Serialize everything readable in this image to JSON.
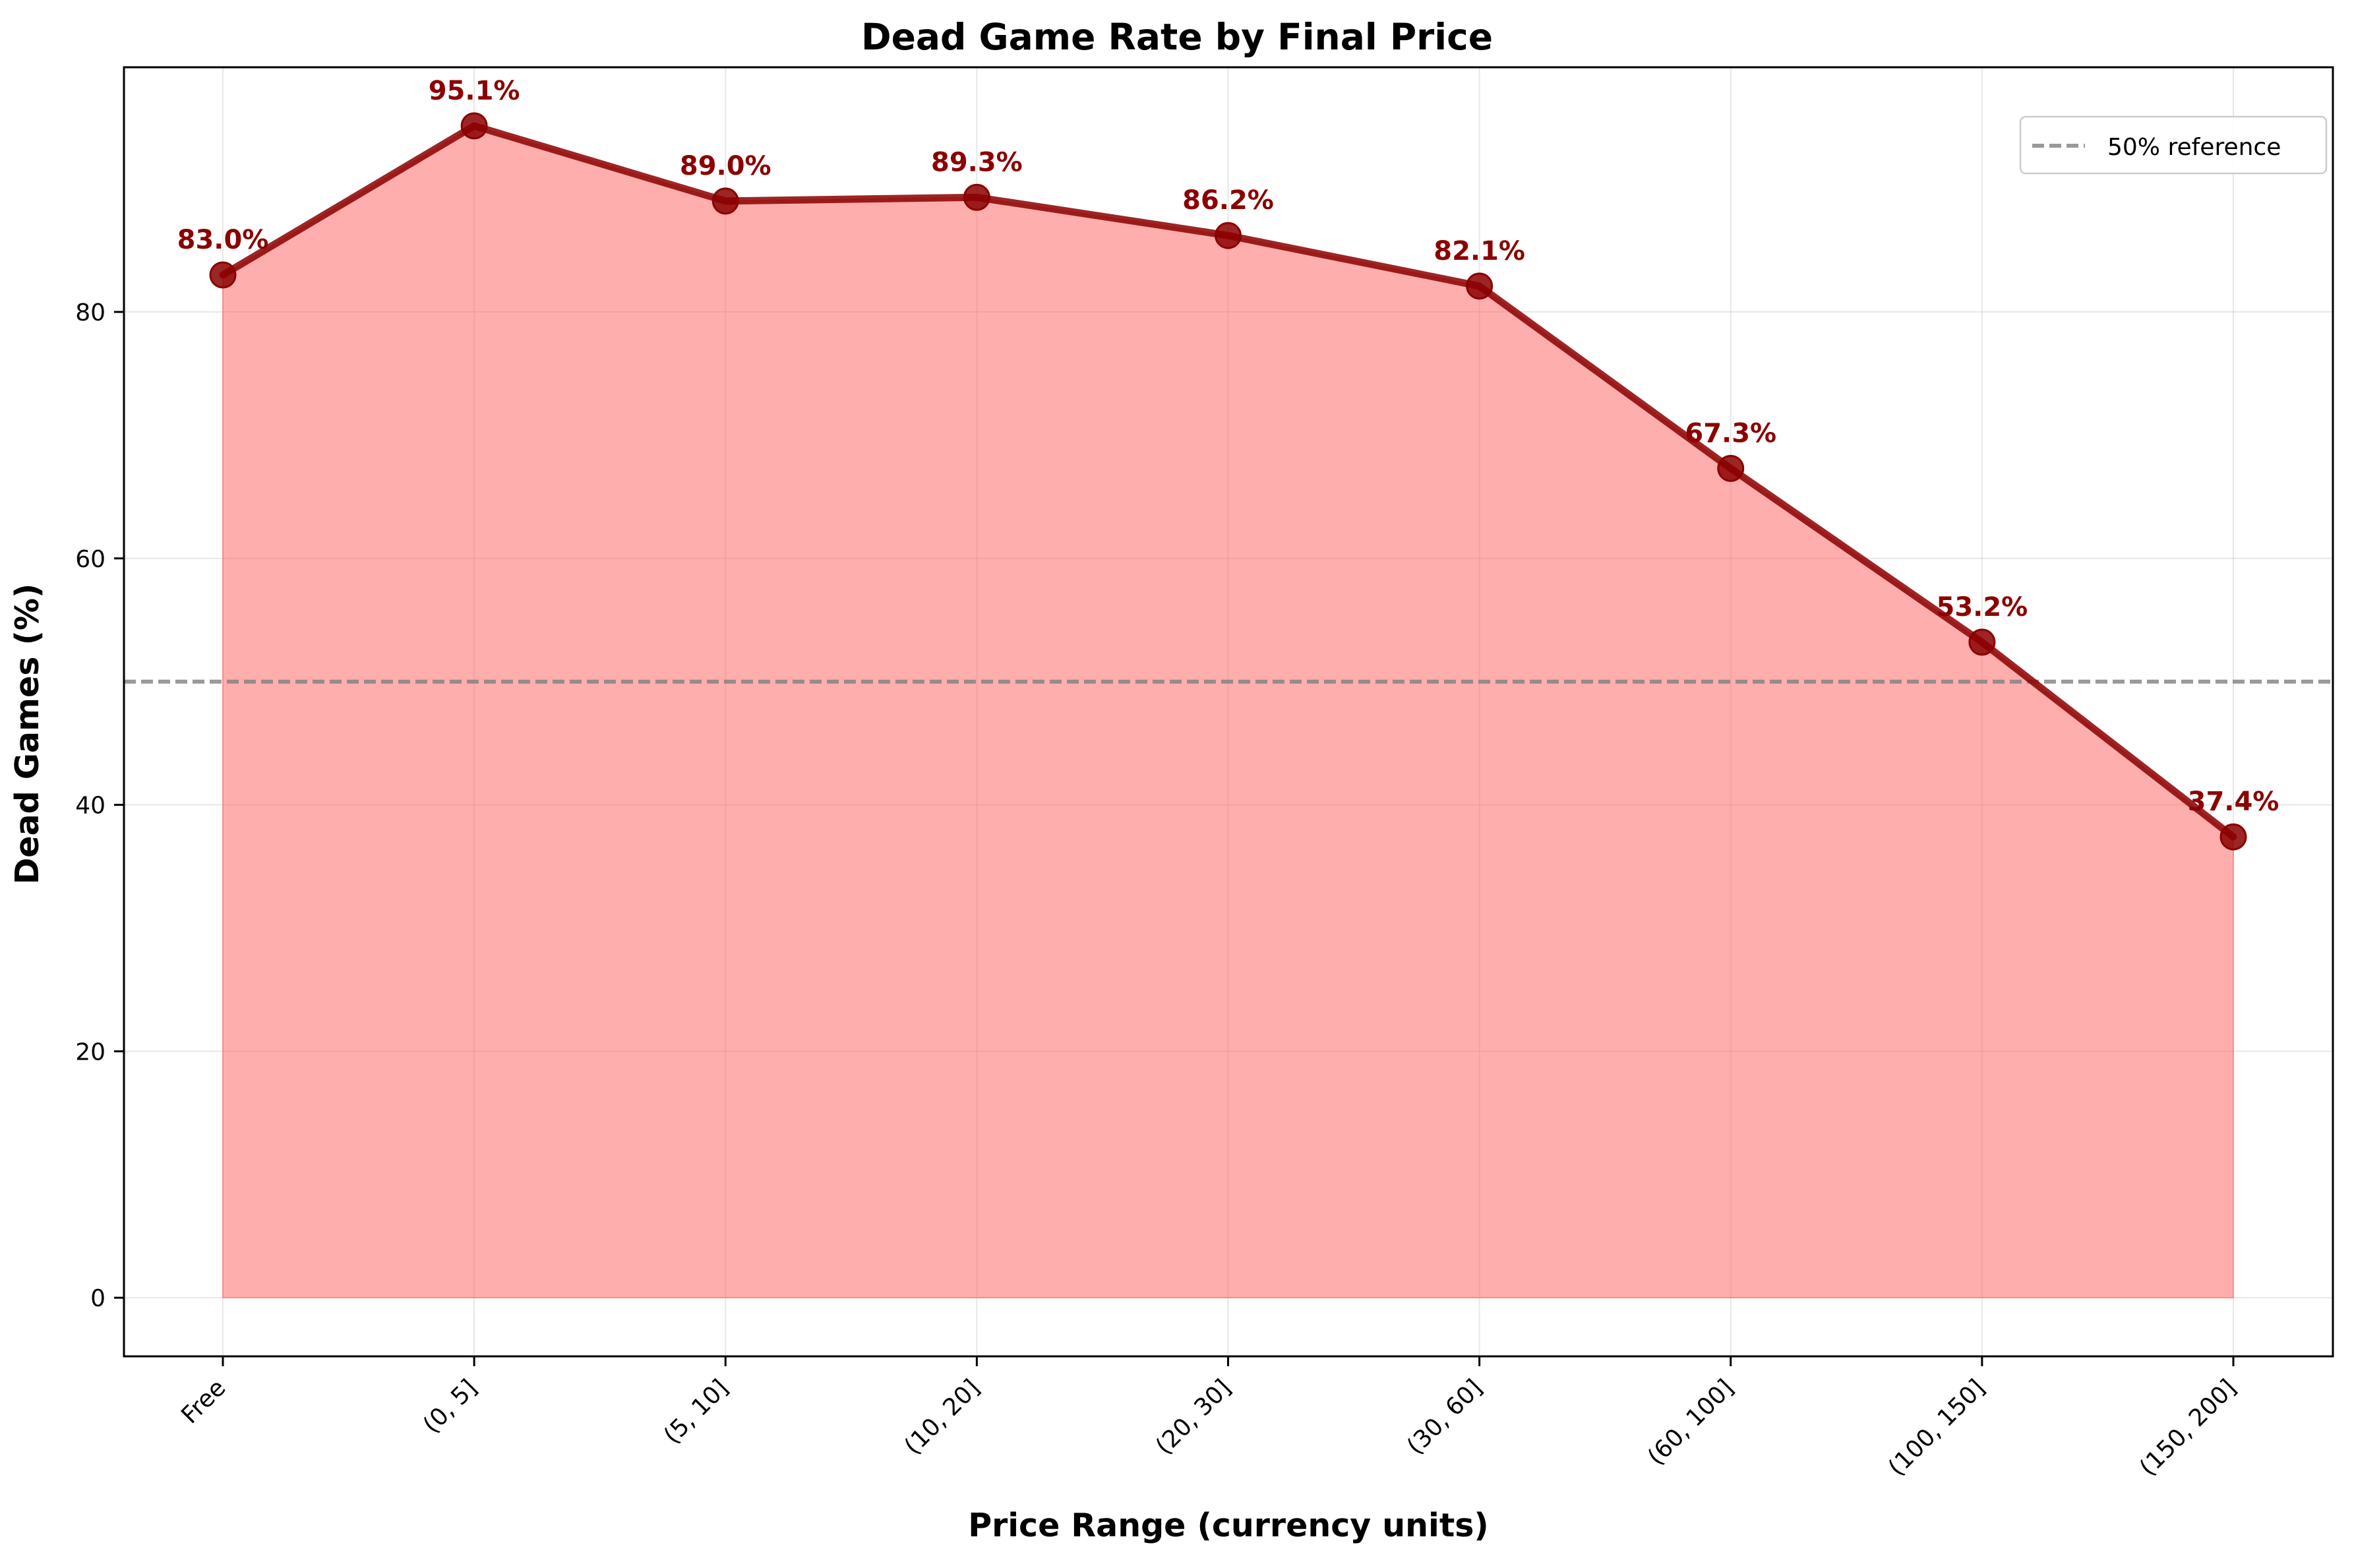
{
  "chart_data": {
    "type": "area",
    "title": "Dead Game Rate by Final Price",
    "xlabel": "Price Range (currency units)",
    "ylabel": "Dead Games (%)",
    "categories": [
      "Free",
      "(0, 5]",
      "(5, 10]",
      "(10, 20]",
      "(20, 30]",
      "(30, 60]",
      "(60, 100]",
      "(100, 150]",
      "(150, 200]"
    ],
    "series": [
      {
        "values": [
          83.0,
          95.1,
          89.0,
          89.3,
          86.2,
          82.1,
          67.3,
          53.2,
          37.4
        ],
        "color": "#8b0000",
        "fill_color": "#ff6b6b"
      }
    ],
    "data_labels": [
      "83.0%",
      "95.1%",
      "89.0%",
      "89.3%",
      "86.2%",
      "82.1%",
      "67.3%",
      "53.2%",
      "37.4%"
    ],
    "ylim": [
      -4.755,
      99.855
    ],
    "yticks": [
      0,
      20,
      40,
      60,
      80
    ],
    "reference_line": {
      "value": 50,
      "label": "50% reference",
      "color": "#808080",
      "style": "dashed"
    },
    "grid": true,
    "legend_position": "top-right"
  }
}
